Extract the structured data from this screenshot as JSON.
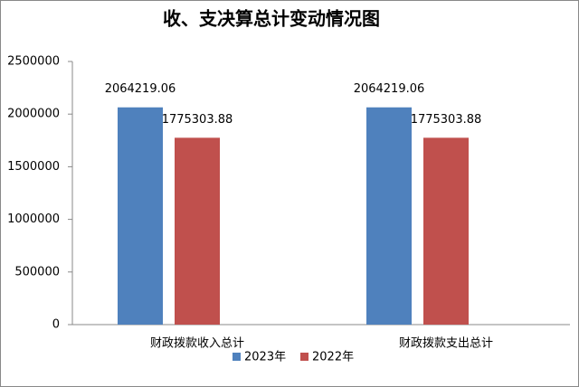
{
  "chart_data": {
    "type": "bar",
    "title": "收、支决算总计变动情况图",
    "categories": [
      "财政拨款收入总计",
      "财政拨款支出总计"
    ],
    "series": [
      {
        "name": "2023年",
        "color": "#4f81bd",
        "values": [
          2064219.06,
          2064219.06
        ]
      },
      {
        "name": "2022年",
        "color": "#c0504d",
        "values": [
          1775303.88,
          1775303.88
        ]
      }
    ],
    "ylim": [
      0,
      2500000
    ],
    "yticks": [
      0,
      500000,
      1000000,
      1500000,
      2000000,
      2500000
    ],
    "grid": false,
    "legend": "bottom"
  }
}
